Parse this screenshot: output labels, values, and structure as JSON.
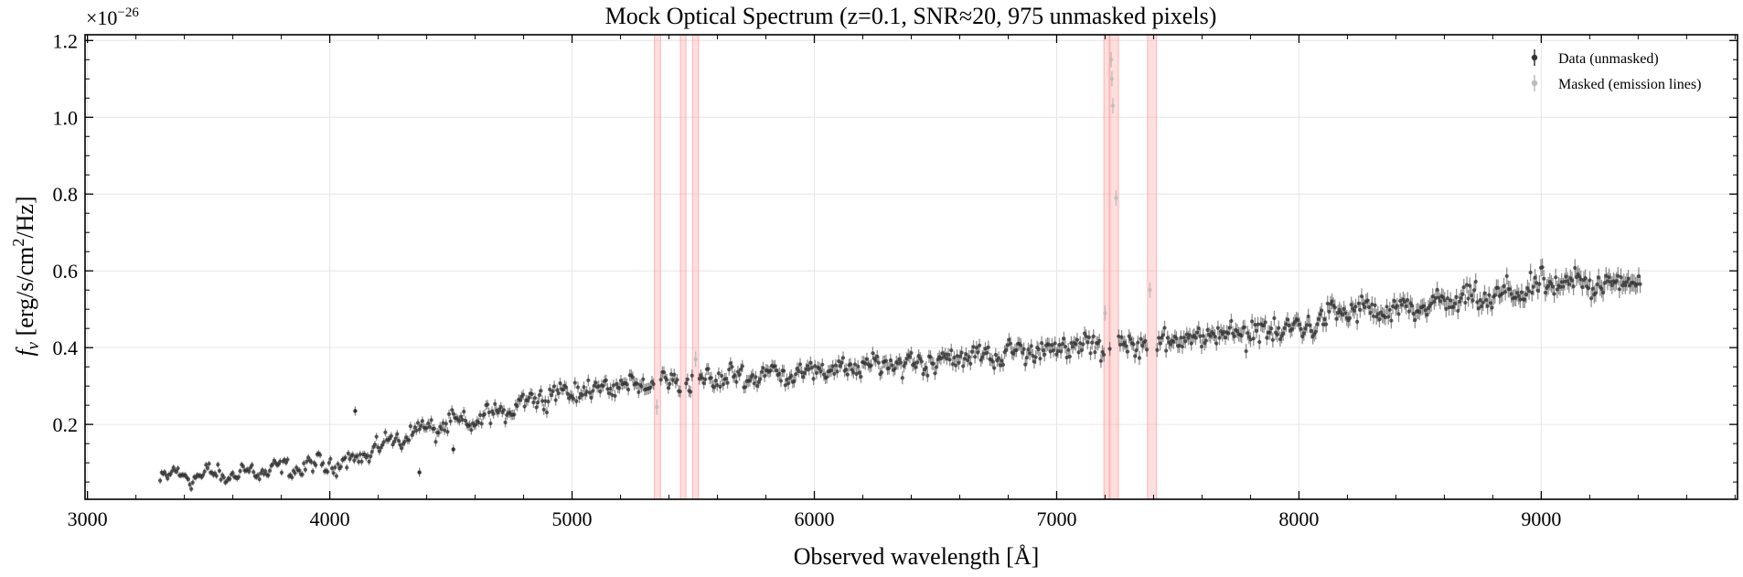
{
  "chart_data": {
    "type": "scatter",
    "title": "Mock Optical Spectrum (z=0.1, SNR≈20, 975 unmasked pixels)",
    "xlabel": "Observed wavelength [Å]",
    "ylabel_symbol": "f",
    "ylabel_subscript": "ν",
    "ylabel_units_pre": " [erg/s/cm",
    "ylabel_units_sup": "2",
    "ylabel_units_post": "/Hz]",
    "offset_base": "×10",
    "offset_exponent": "−26",
    "xlim": [
      2990,
      9810
    ],
    "ylim": [
      0.005,
      1.215
    ],
    "xticks": [
      3000,
      4000,
      5000,
      6000,
      7000,
      8000,
      9000
    ],
    "xtick_labels": [
      "3000",
      "4000",
      "5000",
      "6000",
      "7000",
      "8000",
      "9000"
    ],
    "yticks": [
      0.2,
      0.4,
      0.6,
      0.8,
      1.0,
      1.2
    ],
    "ytick_labels": [
      "0.2",
      "0.4",
      "0.6",
      "0.8",
      "1.0",
      "1.2"
    ],
    "grid": true,
    "legend_position": "upper right",
    "legend": [
      {
        "label": "Data (unmasked)",
        "color": "#333333"
      },
      {
        "label": "Masked (emission lines)",
        "color": "#bbbbbb"
      }
    ],
    "mask_color": "#ff9999",
    "mask_regions": [
      [
        5340,
        5365
      ],
      [
        5447,
        5470
      ],
      [
        5497,
        5522
      ],
      [
        7195,
        7217
      ],
      [
        7220,
        7255
      ],
      [
        7375,
        7412
      ]
    ],
    "continuum_anchors": {
      "x": [
        3300,
        3600,
        3800,
        4000,
        4100,
        4200,
        4300,
        4400,
        4500,
        4600,
        4700,
        4800,
        4900,
        5000,
        5200,
        5400,
        5600,
        5800,
        6000,
        6200,
        6400,
        6600,
        6800,
        7000,
        7200,
        7400,
        7600,
        7800,
        8000,
        8200,
        8400,
        8600,
        8800,
        9000,
        9200,
        9400,
        9500
      ],
      "y": [
        0.065,
        0.07,
        0.085,
        0.095,
        0.11,
        0.14,
        0.17,
        0.19,
        0.2,
        0.21,
        0.23,
        0.26,
        0.28,
        0.285,
        0.3,
        0.31,
        0.32,
        0.33,
        0.34,
        0.35,
        0.36,
        0.375,
        0.385,
        0.4,
        0.405,
        0.415,
        0.43,
        0.44,
        0.45,
        0.5,
        0.49,
        0.52,
        0.53,
        0.56,
        0.57,
        0.57,
        0.6
      ]
    },
    "x_range": [
      3300,
      9500
    ],
    "unmasked_pixels": 975,
    "noise_scale": 0.018,
    "outliers": [
      {
        "x": 4105,
        "y": 0.235
      },
      {
        "x": 4370,
        "y": 0.075
      },
      {
        "x": 4510,
        "y": 0.135
      }
    ],
    "masked_points": [
      {
        "x": 5350,
        "y": 0.245
      },
      {
        "x": 5510,
        "y": 0.37
      },
      {
        "x": 7200,
        "y": 0.49
      },
      {
        "x": 7225,
        "y": 1.15
      },
      {
        "x": 7228,
        "y": 1.1
      },
      {
        "x": 7232,
        "y": 1.03
      },
      {
        "x": 7245,
        "y": 0.79
      },
      {
        "x": 7385,
        "y": 0.55
      }
    ]
  }
}
